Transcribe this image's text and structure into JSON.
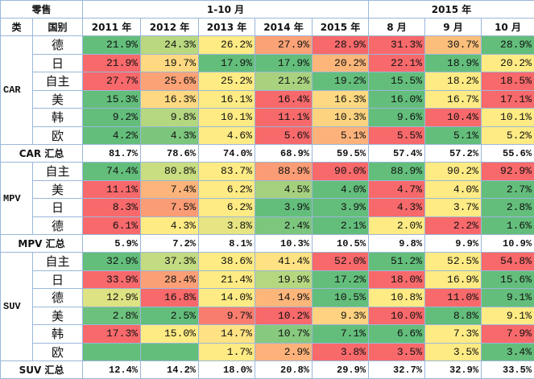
{
  "header": {
    "top": [
      "零售",
      "1-10 月",
      "2015 年"
    ],
    "columns": [
      "类",
      "国别",
      "2011 年",
      "2012 年",
      "2013 年",
      "2014 年",
      "2015 年",
      "8 月",
      "9 月",
      "10 月"
    ]
  },
  "groups": [
    {
      "label": "CAR",
      "rows": [
        {
          "country": "德",
          "values": [
            "21.9%",
            "24.3%",
            "26.2%",
            "27.9%",
            "28.9%",
            "31.3%",
            "30.7%",
            "28.9%"
          ],
          "colors": [
            "#63be7b",
            "#b9d880",
            "#ffeb84",
            "#fba276",
            "#f8696b",
            "#f8696b",
            "#fcbf7b",
            "#63be7b"
          ]
        },
        {
          "country": "日",
          "values": [
            "21.9%",
            "19.7%",
            "17.9%",
            "17.9%",
            "20.2%",
            "22.1%",
            "18.9%",
            "20.2%"
          ],
          "colors": [
            "#f8696b",
            "#fed981",
            "#63be7b",
            "#63be7b",
            "#fcb67a",
            "#f8696b",
            "#63be7b",
            "#ffeb84"
          ]
        },
        {
          "country": "自主",
          "values": [
            "27.7%",
            "25.6%",
            "25.2%",
            "21.2%",
            "19.2%",
            "15.5%",
            "18.2%",
            "18.5%"
          ],
          "colors": [
            "#f8696b",
            "#fba276",
            "#ffeb84",
            "#a9d27f",
            "#63be7b",
            "#63be7b",
            "#ffeb84",
            "#f8696b"
          ]
        },
        {
          "country": "美",
          "values": [
            "15.3%",
            "16.3%",
            "16.1%",
            "16.4%",
            "16.3%",
            "16.0%",
            "16.7%",
            "17.1%"
          ],
          "colors": [
            "#63be7b",
            "#fed981",
            "#ffeb84",
            "#f8696b",
            "#fed981",
            "#63be7b",
            "#ffeb84",
            "#f8696b"
          ]
        },
        {
          "country": "韩",
          "values": [
            "9.2%",
            "9.8%",
            "10.1%",
            "11.1%",
            "10.3%",
            "9.6%",
            "10.4%",
            "10.1%"
          ],
          "colors": [
            "#63be7b",
            "#b5d780",
            "#ffeb84",
            "#f8696b",
            "#fed380",
            "#63be7b",
            "#f8696b",
            "#ffeb84"
          ]
        },
        {
          "country": "欧",
          "values": [
            "4.2%",
            "4.3%",
            "4.6%",
            "5.6%",
            "5.1%",
            "5.5%",
            "5.1%",
            "5.2%"
          ],
          "colors": [
            "#63be7b",
            "#7cc67d",
            "#ffeb84",
            "#f8696b",
            "#fcb27a",
            "#f8696b",
            "#63be7b",
            "#ffeb84"
          ]
        }
      ],
      "total": {
        "label": "CAR 汇总",
        "values": [
          "81.7%",
          "78.6%",
          "74.0%",
          "68.9%",
          "59.5%",
          "57.4%",
          "57.2%",
          "55.6%"
        ]
      }
    },
    {
      "label": "MPV",
      "rows": [
        {
          "country": "自主",
          "values": [
            "74.4%",
            "80.8%",
            "83.7%",
            "88.9%",
            "90.0%",
            "88.9%",
            "90.2%",
            "92.9%"
          ],
          "colors": [
            "#63be7b",
            "#c9dd81",
            "#ffeb84",
            "#fa9c75",
            "#f8696b",
            "#63be7b",
            "#ffeb84",
            "#f8696b"
          ]
        },
        {
          "country": "美",
          "values": [
            "11.1%",
            "7.4%",
            "6.2%",
            "4.5%",
            "4.0%",
            "4.7%",
            "4.0%",
            "2.7%"
          ],
          "colors": [
            "#f8696b",
            "#fcb47a",
            "#ffeb84",
            "#a5d17f",
            "#63be7b",
            "#f8696b",
            "#ffeb84",
            "#63be7b"
          ]
        },
        {
          "country": "日",
          "values": [
            "8.3%",
            "7.5%",
            "6.2%",
            "3.9%",
            "3.9%",
            "4.3%",
            "3.7%",
            "2.8%"
          ],
          "colors": [
            "#f8696b",
            "#fa9c75",
            "#ffeb84",
            "#63be7b",
            "#63be7b",
            "#f8696b",
            "#ffeb84",
            "#63be7b"
          ]
        },
        {
          "country": "德",
          "values": [
            "6.1%",
            "4.3%",
            "3.8%",
            "2.4%",
            "2.1%",
            "2.0%",
            "2.2%",
            "1.6%"
          ],
          "colors": [
            "#f8696b",
            "#ffeb84",
            "#e6e483",
            "#7cc67d",
            "#63be7b",
            "#ffeb84",
            "#f8696b",
            "#63be7b"
          ]
        }
      ],
      "total": {
        "label": "MPV 汇总",
        "values": [
          "5.9%",
          "7.2%",
          "8.1%",
          "10.3%",
          "10.5%",
          "9.8%",
          "9.9%",
          "10.9%"
        ]
      }
    },
    {
      "label": "SUV",
      "rows": [
        {
          "country": "自主",
          "values": [
            "32.9%",
            "37.3%",
            "38.6%",
            "41.4%",
            "52.0%",
            "51.2%",
            "52.5%",
            "54.8%"
          ],
          "colors": [
            "#63be7b",
            "#c3db81",
            "#ffeb84",
            "#fee283",
            "#f8696b",
            "#63be7b",
            "#ffeb84",
            "#f8696b"
          ]
        },
        {
          "country": "日",
          "values": [
            "33.9%",
            "28.4%",
            "21.4%",
            "19.9%",
            "17.2%",
            "18.0%",
            "16.9%",
            "15.6%"
          ],
          "colors": [
            "#f8696b",
            "#fb9f76",
            "#ffeb84",
            "#b5d780",
            "#63be7b",
            "#f8696b",
            "#ffeb84",
            "#63be7b"
          ]
        },
        {
          "country": "德",
          "values": [
            "12.9%",
            "16.8%",
            "14.0%",
            "14.9%",
            "10.5%",
            "10.8%",
            "11.0%",
            "9.1%"
          ],
          "colors": [
            "#dde282",
            "#f8696b",
            "#ffeb84",
            "#fcb67a",
            "#63be7b",
            "#ffeb84",
            "#f8696b",
            "#63be7b"
          ]
        },
        {
          "country": "美",
          "values": [
            "2.8%",
            "2.5%",
            "9.7%",
            "10.2%",
            "9.3%",
            "10.0%",
            "8.8%",
            "9.1%"
          ],
          "colors": [
            "#6cc17c",
            "#63be7b",
            "#f97d6e",
            "#f8696b",
            "#fed280",
            "#f8696b",
            "#63be7b",
            "#ffeb84"
          ]
        },
        {
          "country": "韩",
          "values": [
            "17.3%",
            "15.0%",
            "14.7%",
            "10.7%",
            "7.1%",
            "6.6%",
            "7.3%",
            "7.9%"
          ],
          "colors": [
            "#f8696b",
            "#ffeb84",
            "#fee283",
            "#87c97e",
            "#63be7b",
            "#63be7b",
            "#ffeb84",
            "#f8696b"
          ]
        },
        {
          "country": "欧",
          "values": [
            null,
            null,
            "1.7%",
            "2.9%",
            "3.8%",
            "3.5%",
            "3.5%",
            "3.4%"
          ],
          "colors": [
            "#63be7b",
            "#63be7b",
            "#ffeb84",
            "#fcb27a",
            "#f8696b",
            "#f8696b",
            "#ffeb84",
            "#63be7b"
          ]
        }
      ],
      "total": {
        "label": "SUV 汇总",
        "values": [
          "12.4%",
          "14.2%",
          "18.0%",
          "20.8%",
          "29.9%",
          "32.7%",
          "32.9%",
          "33.5%"
        ]
      }
    }
  ]
}
